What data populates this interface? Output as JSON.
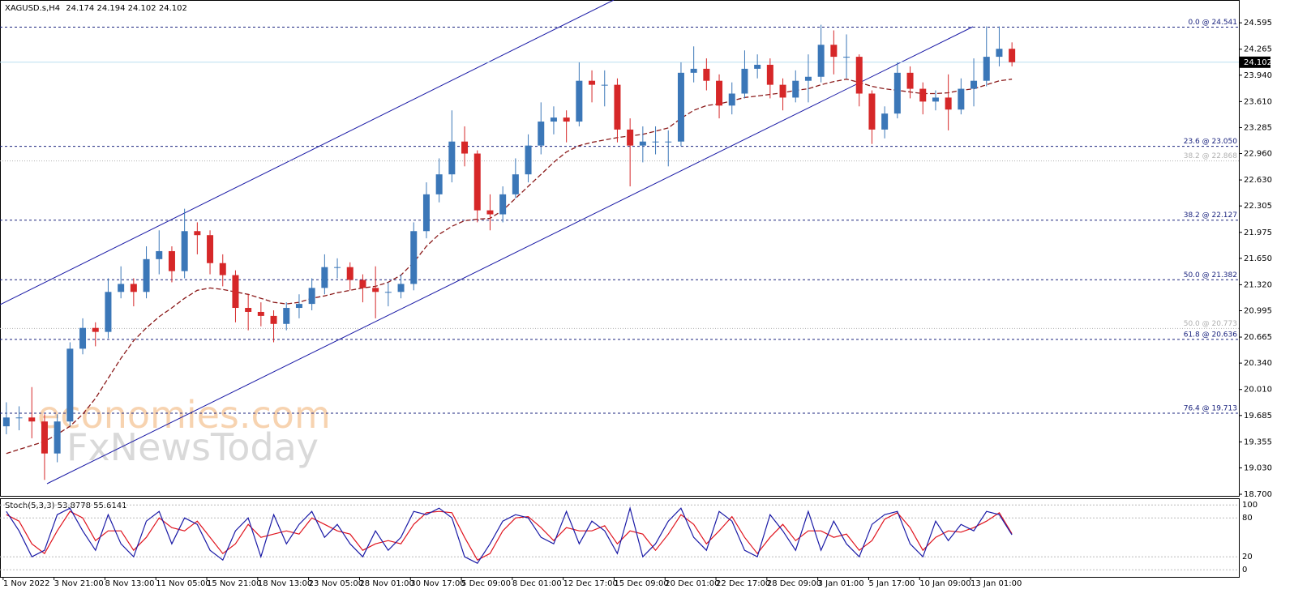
{
  "chart_data": {
    "type": "candlestick",
    "symbol": "XAGUSD.s,H4",
    "quote": [
      24.174,
      24.194,
      24.102,
      24.102
    ],
    "watermark": [
      "economies.com",
      "FxNewsToday"
    ],
    "up_color": "#3b77b8",
    "down_color": "#d62728",
    "ma_color": "#8b1a1a",
    "categories": [
      "1 Nov 2022",
      null,
      null,
      null,
      "3 Nov 21:00",
      null,
      null,
      null,
      "8 Nov 13:00",
      null,
      null,
      null,
      "11 Nov 05:00",
      null,
      null,
      null,
      "15 Nov 21:00",
      null,
      null,
      null,
      "18 Nov 13:00",
      null,
      null,
      null,
      "23 Nov 05:00",
      null,
      null,
      null,
      "28 Nov 01:00",
      null,
      null,
      null,
      "30 Nov 17:00",
      null,
      null,
      null,
      "5 Dec 09:00",
      null,
      null,
      null,
      "8 Dec 01:00",
      null,
      null,
      null,
      "12 Dec 17:00",
      null,
      null,
      null,
      "15 Dec 09:00",
      null,
      null,
      null,
      "20 Dec 01:00",
      null,
      null,
      null,
      "22 Dec 17:00",
      null,
      null,
      null,
      "28 Dec 09:00",
      null,
      null,
      null,
      "3 Jan 01:00",
      null,
      null,
      null,
      "5 Jan 17:00",
      null,
      null,
      null,
      "10 Jan 09:00",
      null,
      null,
      null,
      "13 Jan 01:00",
      null,
      null,
      null
    ],
    "open": [
      19.55,
      19.66,
      19.66,
      19.61,
      19.21,
      19.61,
      20.52,
      20.78,
      20.73,
      21.23,
      21.33,
      21.23,
      21.64,
      21.74,
      21.49,
      21.99,
      21.94,
      21.59,
      21.44,
      21.03,
      20.98,
      20.93,
      20.83,
      21.03,
      21.08,
      21.28,
      21.54,
      21.54,
      21.38,
      21.28,
      21.23,
      21.23,
      21.33,
      21.99,
      22.45,
      22.7,
      23.11,
      22.96,
      22.25,
      22.2,
      22.45,
      22.7,
      23.06,
      23.36,
      23.41,
      23.36,
      23.87,
      23.82,
      23.82,
      23.26,
      23.06,
      23.11,
      23.11,
      23.11,
      23.97,
      24.02,
      23.87,
      23.56,
      23.71,
      24.02,
      24.07,
      23.82,
      23.66,
      23.87,
      23.92,
      24.32,
      24.17,
      24.17,
      23.71,
      23.26,
      23.46,
      23.97,
      23.77,
      23.61,
      23.66,
      23.51,
      23.77,
      23.87,
      24.17,
      24.27
    ],
    "high": [
      19.85,
      19.8,
      20.04,
      19.7,
      19.7,
      20.6,
      20.9,
      20.85,
      21.4,
      21.55,
      21.4,
      21.8,
      22.0,
      21.8,
      22.27,
      22.1,
      22.0,
      21.7,
      21.5,
      21.2,
      21.1,
      21.0,
      21.1,
      21.2,
      21.4,
      21.7,
      21.65,
      21.6,
      21.45,
      21.55,
      21.35,
      21.45,
      22.1,
      22.6,
      22.9,
      23.5,
      23.3,
      23.0,
      22.45,
      22.55,
      22.9,
      23.2,
      23.6,
      23.55,
      23.5,
      24.1,
      24.0,
      24.0,
      23.9,
      23.4,
      23.3,
      23.3,
      23.25,
      24.1,
      24.3,
      24.15,
      23.95,
      23.85,
      24.25,
      24.2,
      24.15,
      23.9,
      24.0,
      24.2,
      24.57,
      24.5,
      24.45,
      24.2,
      23.75,
      23.55,
      24.1,
      24.05,
      23.85,
      23.75,
      23.95,
      23.9,
      24.15,
      24.55,
      24.55,
      24.35
    ],
    "low": [
      19.45,
      19.5,
      19.4,
      18.88,
      19.1,
      19.55,
      20.45,
      20.55,
      20.65,
      21.15,
      21.05,
      21.15,
      21.45,
      21.35,
      21.4,
      21.7,
      21.45,
      21.3,
      20.85,
      20.75,
      20.8,
      20.6,
      20.75,
      20.9,
      21.0,
      21.2,
      21.4,
      21.25,
      21.1,
      20.9,
      21.05,
      21.15,
      21.25,
      21.9,
      22.35,
      22.6,
      22.8,
      22.1,
      22.0,
      22.1,
      22.4,
      22.6,
      22.95,
      23.2,
      23.1,
      23.3,
      23.6,
      23.55,
      23.1,
      22.55,
      22.85,
      22.95,
      22.8,
      23.05,
      23.85,
      23.75,
      23.4,
      23.45,
      23.65,
      23.9,
      23.65,
      23.5,
      23.6,
      23.6,
      23.85,
      23.95,
      23.9,
      23.55,
      23.08,
      23.15,
      23.4,
      23.65,
      23.45,
      23.5,
      23.25,
      23.45,
      23.55,
      23.8,
      24.05,
      24.05
    ],
    "close": [
      19.66,
      19.66,
      19.61,
      19.21,
      19.61,
      20.52,
      20.78,
      20.73,
      21.23,
      21.33,
      21.23,
      21.64,
      21.74,
      21.49,
      21.99,
      21.94,
      21.59,
      21.44,
      21.03,
      20.98,
      20.93,
      20.83,
      21.03,
      21.08,
      21.28,
      21.54,
      21.54,
      21.38,
      21.28,
      21.23,
      21.23,
      21.33,
      21.99,
      22.45,
      22.7,
      23.11,
      22.96,
      22.25,
      22.2,
      22.45,
      22.7,
      23.06,
      23.36,
      23.41,
      23.36,
      23.87,
      23.82,
      23.82,
      23.26,
      23.06,
      23.11,
      23.11,
      23.11,
      23.97,
      24.02,
      23.87,
      23.56,
      23.71,
      24.02,
      24.07,
      23.82,
      23.66,
      23.87,
      23.92,
      24.32,
      24.17,
      24.17,
      23.71,
      23.26,
      23.46,
      23.97,
      23.77,
      23.61,
      23.66,
      23.51,
      23.77,
      23.87,
      24.17,
      24.27,
      24.102
    ],
    "ma": [
      19.21,
      19.26,
      19.31,
      19.36,
      19.45,
      19.55,
      19.7,
      19.9,
      20.15,
      20.4,
      20.62,
      20.78,
      20.92,
      21.03,
      21.15,
      21.25,
      21.28,
      21.26,
      21.23,
      21.2,
      21.15,
      21.1,
      21.08,
      21.1,
      21.15,
      21.18,
      21.22,
      21.25,
      21.28,
      21.3,
      21.35,
      21.44,
      21.6,
      21.8,
      21.95,
      22.05,
      22.12,
      22.14,
      22.15,
      22.25,
      22.4,
      22.55,
      22.7,
      22.85,
      22.98,
      23.06,
      23.1,
      23.13,
      23.16,
      23.18,
      23.2,
      23.24,
      23.28,
      23.4,
      23.5,
      23.56,
      23.58,
      23.62,
      23.66,
      23.68,
      23.7,
      23.72,
      23.75,
      23.77,
      23.82,
      23.86,
      23.89,
      23.85,
      23.8,
      23.77,
      23.75,
      23.73,
      23.71,
      23.71,
      23.72,
      23.75,
      23.77,
      23.82,
      23.87,
      23.89
    ],
    "ylim": [
      18.68,
      24.88
    ],
    "yticks": [
      24.595,
      24.265,
      {
        "value": 23.94,
        "label": "23.940"
      },
      {
        "value": 23.61,
        "label": "23.610"
      },
      23.285,
      {
        "value": 22.96,
        "label": "22.960"
      },
      {
        "value": 22.63,
        "label": "22.630"
      },
      22.305,
      21.975,
      {
        "value": 21.65,
        "label": "21.650"
      },
      {
        "value": 21.32,
        "label": "21.320"
      },
      20.995,
      20.665,
      {
        "value": 20.34,
        "label": "20.340"
      },
      {
        "value": 20.01,
        "label": "20.010"
      },
      19.685,
      19.355,
      {
        "value": 19.03,
        "label": "19.030"
      },
      {
        "value": 18.7,
        "label": "18.700"
      }
    ],
    "fib_levels": [
      {
        "label": "0.0 @ 24.541",
        "price": 24.541,
        "color": "#1a237e"
      },
      {
        "label": "23.6 @ 23.050",
        "price": 23.05,
        "color": "#1a237e"
      },
      {
        "label": "38.2 @ 22.868",
        "price": 22.868,
        "color": "#b0b0b0"
      },
      {
        "label": "38.2 @ 22.127",
        "price": 22.127,
        "color": "#1a237e"
      },
      {
        "label": "50.0 @ 21.382",
        "price": 21.382,
        "color": "#1a237e"
      },
      {
        "label": "50.0 @ 20.773",
        "price": 20.773,
        "color": "#b0b0b0"
      },
      {
        "label": "61.8 @ 20.636",
        "price": 20.636,
        "color": "#1a237e"
      },
      {
        "label": "76.4 @ 19.713",
        "price": 19.713,
        "color": "#1a237e"
      }
    ],
    "oscillator": {
      "label": "Stoch(5,3,3) 53.8778 55.6141",
      "main_color": "#1a1aa6",
      "signal_color": "#e0141e",
      "ylim": [
        -11,
        109
      ],
      "yticks": [
        100,
        80,
        20,
        0
      ],
      "main": [
        90,
        60,
        20,
        30,
        85,
        95,
        60,
        30,
        85,
        40,
        20,
        75,
        90,
        40,
        80,
        70,
        30,
        15,
        60,
        80,
        20,
        85,
        40,
        70,
        90,
        50,
        70,
        40,
        20,
        60,
        30,
        50,
        90,
        85,
        95,
        80,
        20,
        10,
        40,
        75,
        85,
        80,
        50,
        40,
        90,
        40,
        75,
        60,
        25,
        95,
        20,
        40,
        75,
        95,
        50,
        30,
        90,
        75,
        30,
        20,
        85,
        60,
        30,
        90,
        30,
        75,
        40,
        20,
        70,
        85,
        90,
        40,
        20,
        75,
        45,
        70,
        60,
        90,
        85,
        53.8778
      ],
      "signal": [
        85,
        75,
        40,
        25,
        60,
        90,
        80,
        45,
        60,
        60,
        30,
        50,
        80,
        65,
        60,
        75,
        50,
        25,
        40,
        70,
        50,
        55,
        60,
        55,
        80,
        70,
        60,
        55,
        30,
        40,
        45,
        40,
        70,
        88,
        90,
        88,
        50,
        15,
        25,
        60,
        80,
        82,
        65,
        45,
        65,
        60,
        60,
        68,
        40,
        60,
        55,
        30,
        55,
        85,
        70,
        40,
        60,
        82,
        50,
        25,
        50,
        70,
        45,
        60,
        60,
        50,
        55,
        30,
        45,
        78,
        88,
        65,
        30,
        50,
        60,
        58,
        65,
        75,
        88,
        55.6141
      ]
    }
  }
}
